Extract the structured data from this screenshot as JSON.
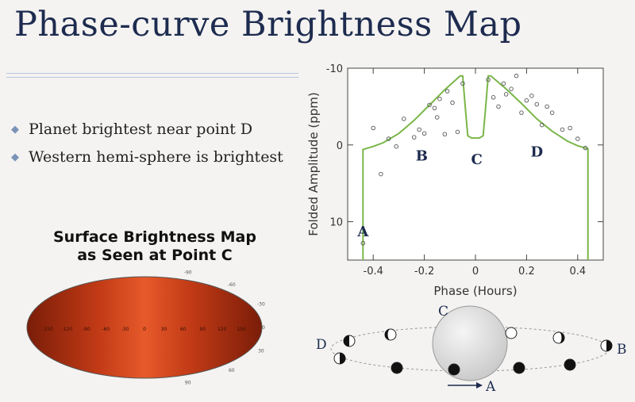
{
  "slide": {
    "title": "Phase-curve Brightness Map",
    "bullets": [
      "Planet brightest near point D",
      "Western hemi-sphere is brightest"
    ]
  },
  "map": {
    "title_line1": "Surface Brightness Map",
    "title_line2": "as Seen at Point C",
    "lon_labels": [
      "-150",
      "-120",
      "-90",
      "-60",
      "-30",
      "0",
      "30",
      "60",
      "90",
      "120",
      "150"
    ],
    "lat_labels": [
      "-90",
      "-60",
      "-30",
      "0",
      "30",
      "60",
      "90"
    ],
    "colors": {
      "edge": "#7a1d08",
      "mid": "#c13a16",
      "center": "#e65a2a"
    }
  },
  "orbit": {
    "labels": {
      "A": "A",
      "B": "B",
      "C": "C",
      "D": "D"
    },
    "colors": {
      "planet_dark": "#111111",
      "star": "#c8c8c8"
    }
  },
  "chart_data": {
    "type": "scatter",
    "xlabel": "Phase (Hours)",
    "ylabel": "Folded Amplitude (ppm)",
    "xlim": [
      -0.5,
      0.5
    ],
    "ylim": [
      15,
      -10
    ],
    "x_ticks": [
      -0.4,
      -0.2,
      0,
      0.2,
      0.4
    ],
    "x_tick_labels": [
      "-0.4",
      "-0.2",
      "0",
      "0.2",
      "0.4"
    ],
    "y_ticks": [
      -10,
      0,
      10
    ],
    "y_tick_labels": [
      "-10",
      "0",
      "10"
    ],
    "line_color": "#7ab648",
    "series": [
      {
        "type": "scatter",
        "x": [
          -0.44,
          -0.4,
          -0.37,
          -0.34,
          -0.31,
          -0.28,
          -0.24,
          -0.22,
          -0.2,
          -0.18,
          -0.16,
          -0.15,
          -0.14,
          -0.12,
          -0.11,
          -0.09,
          -0.07,
          -0.05,
          0.05,
          0.07,
          0.09,
          0.11,
          0.12,
          0.14,
          0.16,
          0.18,
          0.2,
          0.22,
          0.24,
          0.26,
          0.28,
          0.3,
          0.34,
          0.37,
          0.4,
          0.43
        ],
        "y": [
          12.8,
          -2.2,
          3.8,
          -0.8,
          0.2,
          -3.4,
          -1.0,
          -2.0,
          -1.5,
          -5.2,
          -4.8,
          -3.6,
          -6.0,
          -1.4,
          -7.0,
          -5.5,
          -1.7,
          -8.0,
          -8.5,
          -6.2,
          -5.0,
          -8.0,
          -6.6,
          -7.3,
          -9.0,
          -4.2,
          -5.8,
          -6.4,
          -5.3,
          -2.6,
          -5.0,
          -4.2,
          -2.0,
          -2.2,
          -0.8,
          0.4
        ]
      },
      {
        "type": "line",
        "x": [
          -0.44,
          -0.44,
          -0.43,
          -0.4,
          -0.36,
          -0.3,
          -0.24,
          -0.18,
          -0.12,
          -0.06,
          -0.05,
          -0.04,
          -0.03,
          -0.015,
          0.015,
          0.03,
          0.04,
          0.05,
          0.06,
          0.12,
          0.18,
          0.24,
          0.3,
          0.36,
          0.4,
          0.43,
          0.44,
          0.44
        ],
        "y": [
          15,
          0.6,
          0.5,
          0.2,
          -0.3,
          -1.5,
          -3.2,
          -5.2,
          -7.2,
          -9.0,
          -9.0,
          -5.0,
          -1.2,
          -0.9,
          -0.9,
          -1.2,
          -5.0,
          -9.0,
          -9.0,
          -7.3,
          -5.4,
          -3.4,
          -1.8,
          -0.5,
          0.1,
          0.4,
          0.5,
          15
        ]
      }
    ],
    "annotations": [
      {
        "text": "A",
        "x": -0.44,
        "y": 11.2
      },
      {
        "text": "B",
        "x": -0.21,
        "y": 1.3
      },
      {
        "text": "C",
        "x": 0.005,
        "y": 1.8
      },
      {
        "text": "D",
        "x": 0.24,
        "y": 0.8
      }
    ]
  }
}
